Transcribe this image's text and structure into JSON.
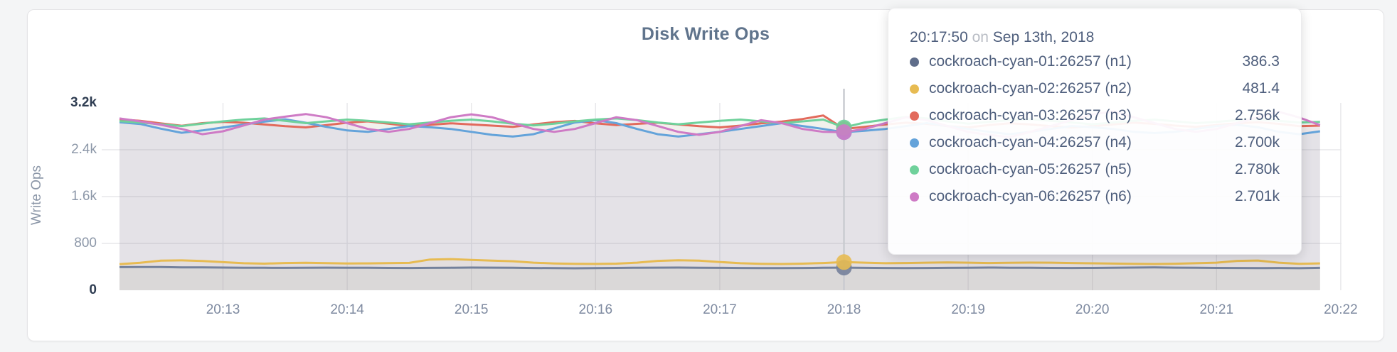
{
  "panel": {
    "title": "Disk Write Ops"
  },
  "tooltip": {
    "time": "20:17:50",
    "conjunction": "on",
    "date": "Sep 13th, 2018",
    "rows": [
      {
        "label": "cockroach-cyan-01:26257 (n1)",
        "value": "386.3",
        "color": "#5f6d8a"
      },
      {
        "label": "cockroach-cyan-02:26257 (n2)",
        "value": "481.4",
        "color": "#e7bb52"
      },
      {
        "label": "cockroach-cyan-03:26257 (n3)",
        "value": "2.756k",
        "color": "#e26a5c"
      },
      {
        "label": "cockroach-cyan-04:26257 (n4)",
        "value": "2.700k",
        "color": "#64a3da"
      },
      {
        "label": "cockroach-cyan-05:26257 (n5)",
        "value": "2.780k",
        "color": "#6fd19b"
      },
      {
        "label": "cockroach-cyan-06:26257 (n6)",
        "value": "2.701k",
        "color": "#ce7ac5"
      }
    ]
  },
  "chart_data": {
    "type": "line",
    "title": "Disk Write Ops",
    "xlabel": "",
    "ylabel": "Write Ops",
    "ylim": [
      0,
      3200
    ],
    "grid": true,
    "legend_position": "tooltip",
    "x_start_time": "20:12:10",
    "x_interval_seconds": 10,
    "hover_index": 35,
    "hover_time": "20:17:50",
    "x_tick_labels": [
      "20:13",
      "20:14",
      "20:15",
      "20:16",
      "20:17",
      "20:18",
      "20:19",
      "20:20",
      "20:21",
      "20:22"
    ],
    "y_ticks": [
      {
        "label": "0",
        "value": 0,
        "strong": true
      },
      {
        "label": "800",
        "value": 800,
        "strong": false
      },
      {
        "label": "1.6k",
        "value": 1600,
        "strong": false
      },
      {
        "label": "2.4k",
        "value": 2400,
        "strong": false
      },
      {
        "label": "3.2k",
        "value": 3200,
        "strong": true
      }
    ],
    "series": [
      {
        "name": "cockroach-cyan-01:26257 (n1)",
        "color": "#74819b",
        "values": [
          395,
          398,
          396,
          392,
          390,
          388,
          386,
          384,
          383,
          385,
          387,
          386,
          384,
          382,
          381,
          383,
          386,
          388,
          387,
          384,
          381,
          378,
          376,
          378,
          382,
          385,
          387,
          388,
          386,
          383,
          381,
          379,
          378,
          380,
          384,
          386.3,
          383,
          380,
          378,
          380,
          383,
          386,
          388,
          386,
          384,
          382,
          380,
          382,
          385,
          388,
          390,
          387,
          384,
          382,
          380,
          378,
          380,
          377,
          383
        ]
      },
      {
        "name": "cockroach-cyan-02:26257 (n2)",
        "color": "#e7bb52",
        "values": [
          445,
          470,
          505,
          510,
          500,
          480,
          462,
          455,
          465,
          470,
          463,
          457,
          460,
          463,
          468,
          525,
          532,
          518,
          505,
          496,
          472,
          458,
          452,
          450,
          455,
          472,
          502,
          512,
          506,
          482,
          462,
          452,
          448,
          455,
          465,
          481.4,
          472,
          462,
          466,
          471,
          476,
          471,
          466,
          469,
          473,
          471,
          466,
          461,
          456,
          451,
          449,
          453,
          462,
          472,
          502,
          508,
          472,
          452,
          460
        ]
      },
      {
        "name": "cockroach-cyan-03:26257 (n3)",
        "color": "#e26a5c",
        "values": [
          2920,
          2895,
          2850,
          2810,
          2855,
          2875,
          2862,
          2832,
          2802,
          2782,
          2822,
          2862,
          2885,
          2845,
          2805,
          2825,
          2852,
          2832,
          2812,
          2792,
          2832,
          2872,
          2892,
          2852,
          2822,
          2842,
          2862,
          2832,
          2802,
          2782,
          2812,
          2852,
          2882,
          2925,
          2985,
          2756,
          2792,
          2832,
          2862,
          2842,
          2802,
          2782,
          2822,
          2852,
          2832,
          2802,
          2782,
          2802,
          2832,
          2862,
          2842,
          2812,
          2792,
          2822,
          2852,
          2872,
          2842,
          2802,
          2812
        ]
      },
      {
        "name": "cockroach-cyan-04:26257 (n4)",
        "color": "#64a3da",
        "values": [
          2870,
          2840,
          2760,
          2690,
          2730,
          2780,
          2830,
          2880,
          2920,
          2860,
          2790,
          2730,
          2705,
          2755,
          2805,
          2785,
          2755,
          2705,
          2655,
          2625,
          2665,
          2765,
          2865,
          2905,
          2855,
          2755,
          2665,
          2625,
          2665,
          2705,
          2755,
          2805,
          2855,
          2805,
          2755,
          2700,
          2725,
          2755,
          2805,
          2855,
          2805,
          2755,
          2705,
          2665,
          2705,
          2755,
          2805,
          2785,
          2755,
          2705,
          2685,
          2705,
          2755,
          2805,
          2825,
          2785,
          2705,
          2665,
          2715
        ]
      },
      {
        "name": "cockroach-cyan-05:26257 (n5)",
        "color": "#6fd19b",
        "values": [
          2890,
          2865,
          2835,
          2805,
          2845,
          2885,
          2915,
          2935,
          2895,
          2855,
          2885,
          2915,
          2895,
          2865,
          2835,
          2865,
          2895,
          2915,
          2885,
          2845,
          2815,
          2845,
          2885,
          2915,
          2935,
          2905,
          2865,
          2835,
          2865,
          2895,
          2915,
          2885,
          2855,
          2885,
          2915,
          2780,
          2865,
          2915,
          2960,
          2935,
          2885,
          2845,
          2875,
          2905,
          2925,
          2895,
          2865,
          2835,
          2865,
          2895,
          2915,
          2885,
          2855,
          2875,
          2905,
          2925,
          2895,
          2865,
          2875
        ]
      },
      {
        "name": "cockroach-cyan-06:26257 (n6)",
        "color": "#ce7ac5",
        "values": [
          2935,
          2885,
          2825,
          2755,
          2665,
          2715,
          2815,
          2915,
          2965,
          3010,
          2955,
          2855,
          2755,
          2705,
          2755,
          2855,
          2955,
          3005,
          2955,
          2855,
          2755,
          2705,
          2755,
          2855,
          2955,
          2905,
          2805,
          2705,
          2655,
          2705,
          2805,
          2905,
          2855,
          2755,
          2705,
          2701,
          2755,
          2855,
          2955,
          2905,
          2805,
          2705,
          2655,
          2615,
          2705,
          2805,
          2905,
          3005,
          3055,
          2955,
          2855,
          2755,
          2705,
          2755,
          2855,
          2955,
          3050,
          2950,
          2820
        ]
      }
    ]
  }
}
